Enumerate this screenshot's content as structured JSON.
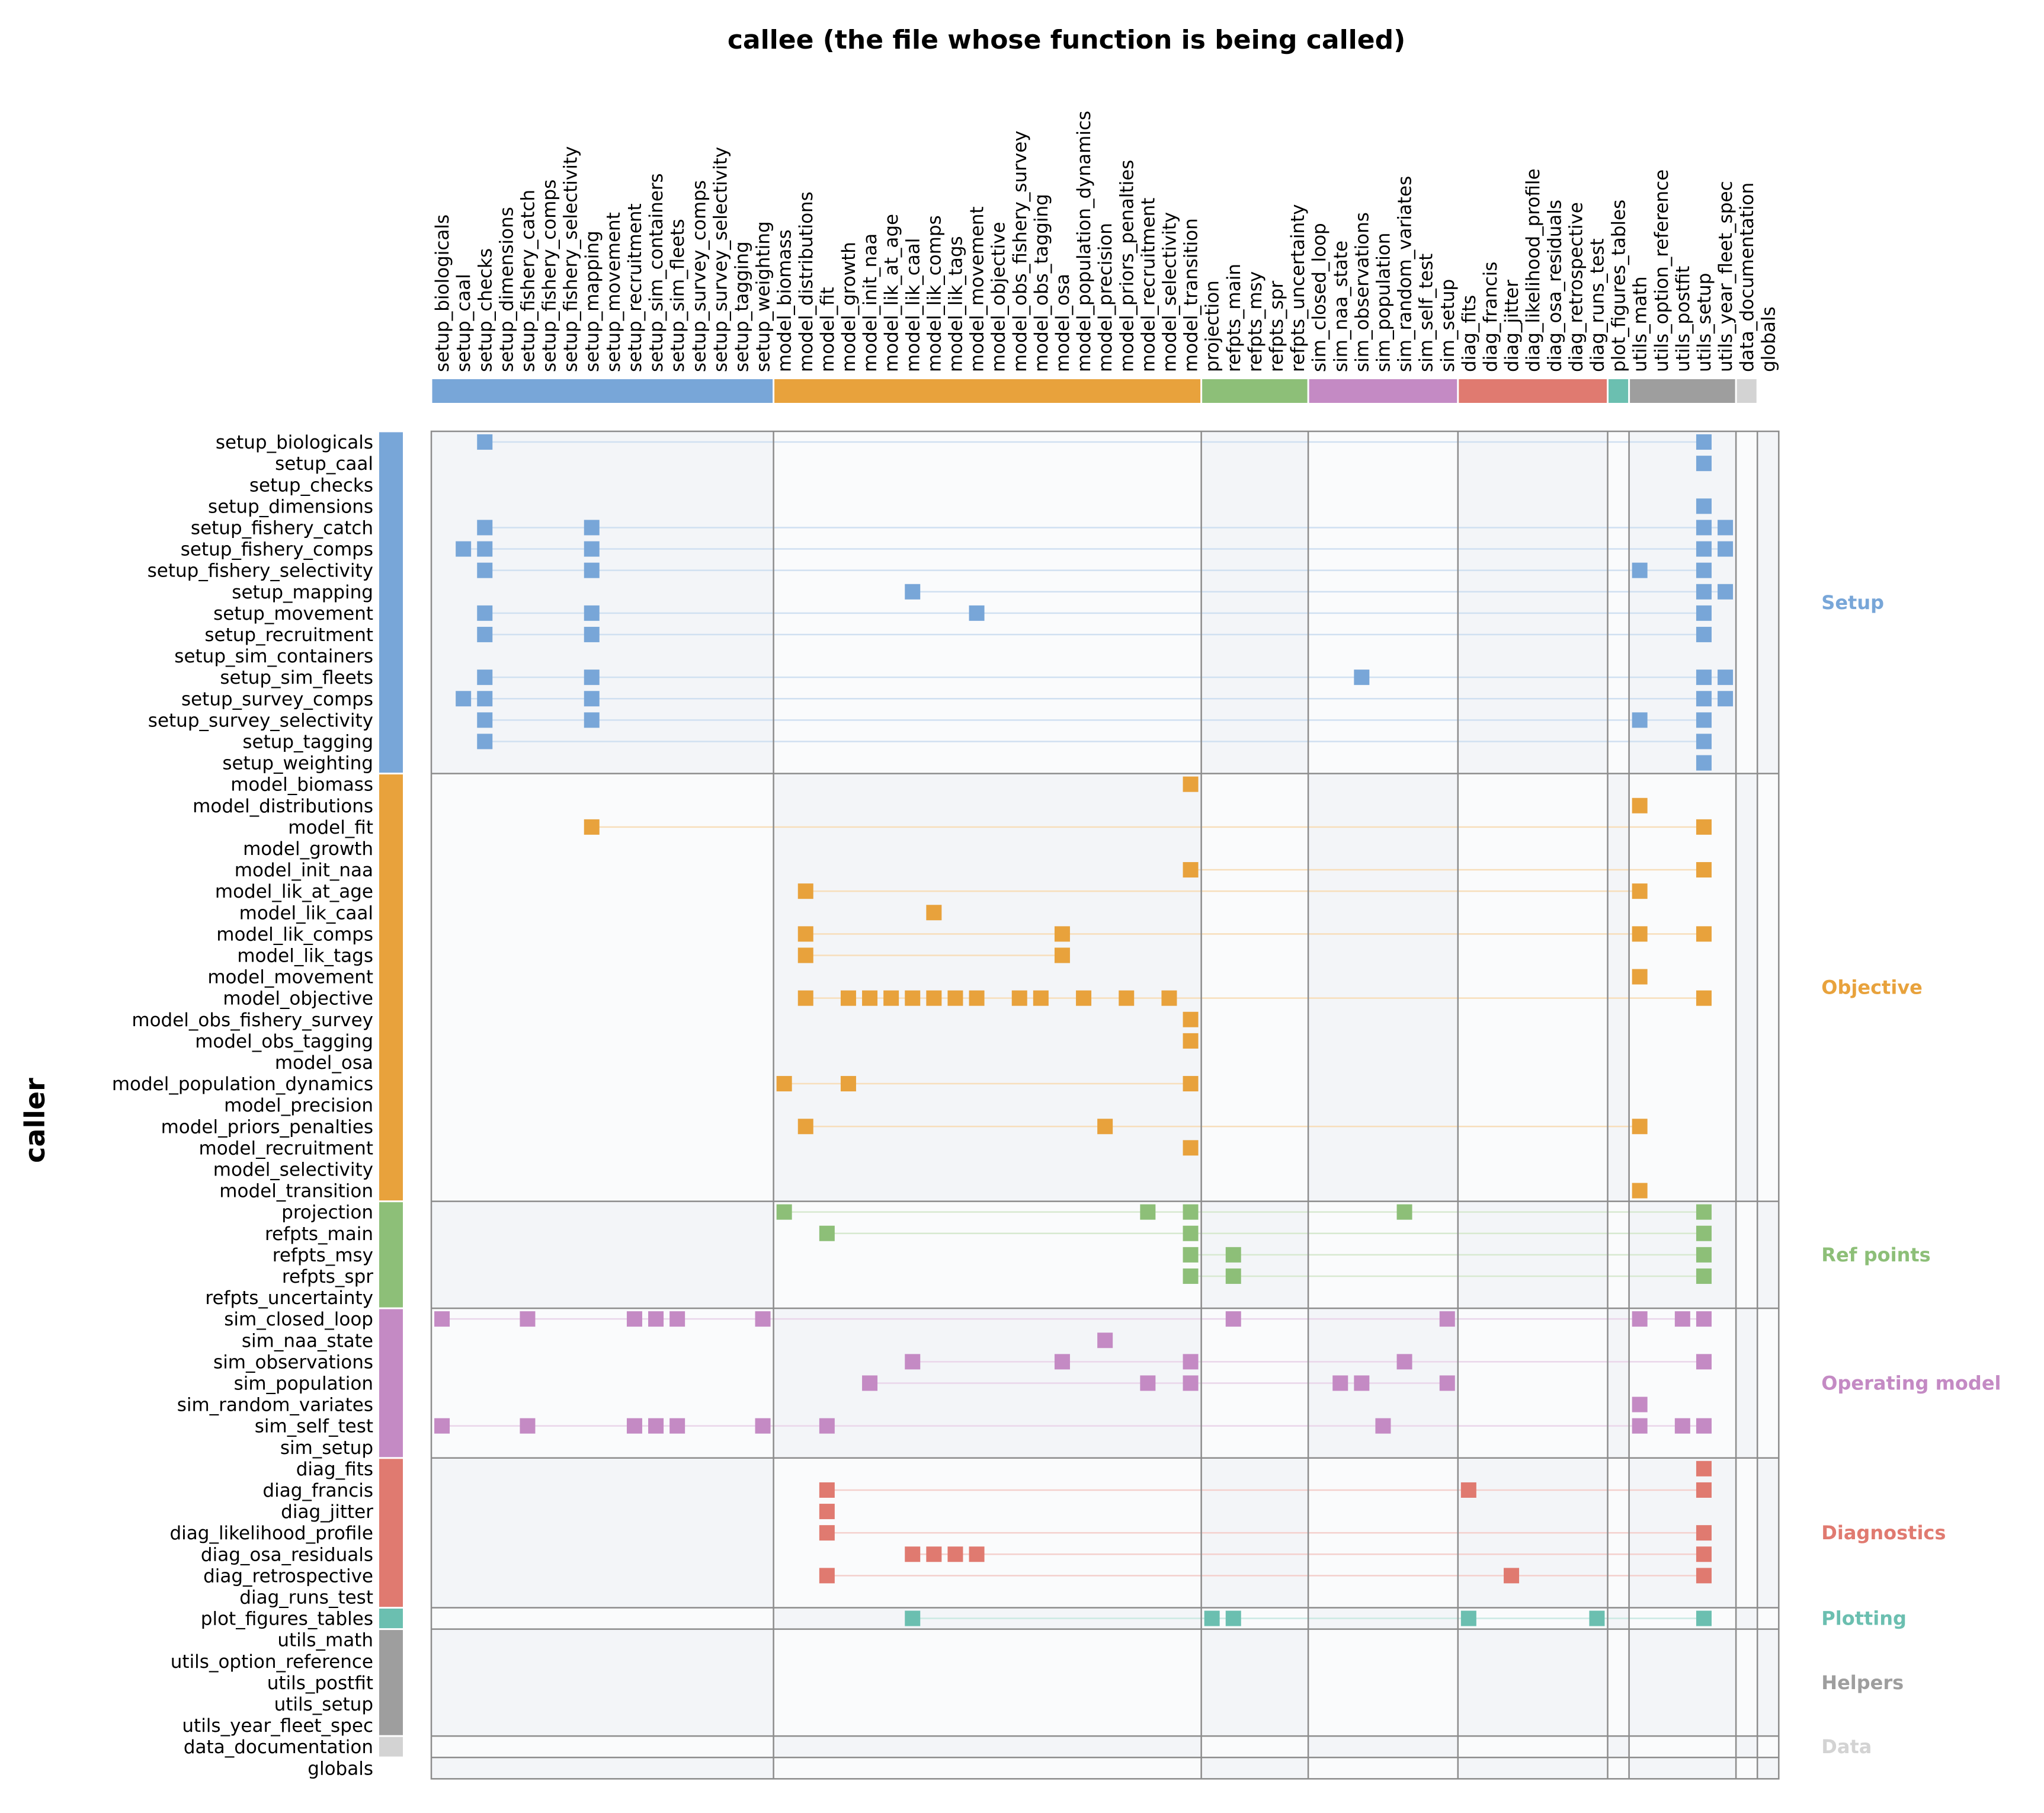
{
  "chart_data": {
    "type": "heatmap",
    "title": "callee  (the file whose function is being called)",
    "ylabel": "caller",
    "files": [
      "setup_biologicals",
      "setup_caal",
      "setup_checks",
      "setup_dimensions",
      "setup_fishery_catch",
      "setup_fishery_comps",
      "setup_fishery_selectivity",
      "setup_mapping",
      "setup_movement",
      "setup_recruitment",
      "setup_sim_containers",
      "setup_sim_fleets",
      "setup_survey_comps",
      "setup_survey_selectivity",
      "setup_tagging",
      "setup_weighting",
      "model_biomass",
      "model_distributions",
      "model_fit",
      "model_growth",
      "model_init_naa",
      "model_lik_at_age",
      "model_lik_caal",
      "model_lik_comps",
      "model_lik_tags",
      "model_movement",
      "model_objective",
      "model_obs_fishery_survey",
      "model_obs_tagging",
      "model_osa",
      "model_population_dynamics",
      "model_precision",
      "model_priors_penalties",
      "model_recruitment",
      "model_selectivity",
      "model_transition",
      "projection",
      "refpts_main",
      "refpts_msy",
      "refpts_spr",
      "refpts_uncertainty",
      "sim_closed_loop",
      "sim_naa_state",
      "sim_observations",
      "sim_population",
      "sim_random_variates",
      "sim_self_test",
      "sim_setup",
      "diag_fits",
      "diag_francis",
      "diag_jitter",
      "diag_likelihood_profile",
      "diag_osa_residuals",
      "diag_retrospective",
      "diag_runs_test",
      "plot_figures_tables",
      "utils_math",
      "utils_option_reference",
      "utils_postfit",
      "utils_setup",
      "utils_year_fleet_spec",
      "data_documentation",
      "globals"
    ],
    "groups": [
      {
        "name": "Setup",
        "start": 0,
        "count": 16,
        "color": "#78a6d8"
      },
      {
        "name": "Objective",
        "start": 16,
        "count": 20,
        "color": "#e8a23c"
      },
      {
        "name": "Ref points",
        "start": 36,
        "count": 5,
        "color": "#8dbf78"
      },
      {
        "name": "Operating model",
        "start": 41,
        "count": 7,
        "color": "#c48ac4"
      },
      {
        "name": "Diagnostics",
        "start": 48,
        "count": 7,
        "color": "#e07a70"
      },
      {
        "name": "Plotting",
        "start": 55,
        "count": 1,
        "color": "#6bbfb0"
      },
      {
        "name": "Helpers",
        "start": 56,
        "count": 5,
        "color": "#9e9e9e"
      },
      {
        "name": "Data",
        "start": 61,
        "count": 1,
        "color": "#d3d3d3"
      },
      {
        "name": "",
        "start": 62,
        "count": 1,
        "color": ""
      }
    ],
    "calls": [
      {
        "caller": "setup_biologicals",
        "callees": [
          "setup_checks",
          "utils_setup"
        ]
      },
      {
        "caller": "setup_caal",
        "callees": [
          "utils_setup"
        ]
      },
      {
        "caller": "setup_checks",
        "callees": []
      },
      {
        "caller": "setup_dimensions",
        "callees": [
          "utils_setup"
        ]
      },
      {
        "caller": "setup_fishery_catch",
        "callees": [
          "setup_checks",
          "setup_mapping",
          "utils_setup",
          "utils_year_fleet_spec"
        ]
      },
      {
        "caller": "setup_fishery_comps",
        "callees": [
          "setup_caal",
          "setup_checks",
          "setup_mapping",
          "utils_setup",
          "utils_year_fleet_spec"
        ]
      },
      {
        "caller": "setup_fishery_selectivity",
        "callees": [
          "setup_checks",
          "setup_mapping",
          "utils_math",
          "utils_setup"
        ]
      },
      {
        "caller": "setup_mapping",
        "callees": [
          "model_lik_caal",
          "utils_setup",
          "utils_year_fleet_spec"
        ]
      },
      {
        "caller": "setup_movement",
        "callees": [
          "setup_checks",
          "setup_mapping",
          "model_movement",
          "utils_setup"
        ]
      },
      {
        "caller": "setup_recruitment",
        "callees": [
          "setup_checks",
          "setup_mapping",
          "utils_setup"
        ]
      },
      {
        "caller": "setup_sim_containers",
        "callees": []
      },
      {
        "caller": "setup_sim_fleets",
        "callees": [
          "setup_checks",
          "setup_mapping",
          "sim_observations",
          "utils_setup",
          "utils_year_fleet_spec"
        ]
      },
      {
        "caller": "setup_survey_comps",
        "callees": [
          "setup_caal",
          "setup_checks",
          "setup_mapping",
          "utils_setup",
          "utils_year_fleet_spec"
        ]
      },
      {
        "caller": "setup_survey_selectivity",
        "callees": [
          "setup_checks",
          "setup_mapping",
          "utils_math",
          "utils_setup"
        ]
      },
      {
        "caller": "setup_tagging",
        "callees": [
          "setup_checks",
          "utils_setup"
        ]
      },
      {
        "caller": "setup_weighting",
        "callees": [
          "utils_setup"
        ]
      },
      {
        "caller": "model_biomass",
        "callees": [
          "model_transition"
        ]
      },
      {
        "caller": "model_distributions",
        "callees": [
          "utils_math"
        ]
      },
      {
        "caller": "model_fit",
        "callees": [
          "setup_mapping",
          "utils_setup"
        ]
      },
      {
        "caller": "model_growth",
        "callees": []
      },
      {
        "caller": "model_init_naa",
        "callees": [
          "model_transition",
          "utils_setup"
        ]
      },
      {
        "caller": "model_lik_at_age",
        "callees": [
          "model_distributions",
          "utils_math"
        ]
      },
      {
        "caller": "model_lik_caal",
        "callees": [
          "model_lik_comps"
        ]
      },
      {
        "caller": "model_lik_comps",
        "callees": [
          "model_distributions",
          "model_osa",
          "utils_math",
          "utils_setup"
        ]
      },
      {
        "caller": "model_lik_tags",
        "callees": [
          "model_distributions",
          "model_osa"
        ]
      },
      {
        "caller": "model_movement",
        "callees": [
          "utils_math"
        ]
      },
      {
        "caller": "model_objective",
        "callees": [
          "model_distributions",
          "model_growth",
          "model_init_naa",
          "model_lik_at_age",
          "model_lik_caal",
          "model_lik_comps",
          "model_lik_tags",
          "model_movement",
          "model_obs_fishery_survey",
          "model_obs_tagging",
          "model_population_dynamics",
          "model_priors_penalties",
          "model_selectivity",
          "utils_setup"
        ]
      },
      {
        "caller": "model_obs_fishery_survey",
        "callees": [
          "model_transition"
        ]
      },
      {
        "caller": "model_obs_tagging",
        "callees": [
          "model_transition"
        ]
      },
      {
        "caller": "model_osa",
        "callees": []
      },
      {
        "caller": "model_population_dynamics",
        "callees": [
          "model_biomass",
          "model_growth",
          "model_transition"
        ]
      },
      {
        "caller": "model_precision",
        "callees": []
      },
      {
        "caller": "model_priors_penalties",
        "callees": [
          "model_distributions",
          "model_precision",
          "utils_math"
        ]
      },
      {
        "caller": "model_recruitment",
        "callees": [
          "model_transition"
        ]
      },
      {
        "caller": "model_selectivity",
        "callees": []
      },
      {
        "caller": "model_transition",
        "callees": [
          "utils_math"
        ]
      },
      {
        "caller": "projection",
        "callees": [
          "model_biomass",
          "model_recruitment",
          "model_transition",
          "sim_random_variates",
          "utils_setup"
        ]
      },
      {
        "caller": "refpts_main",
        "callees": [
          "model_fit",
          "model_transition",
          "utils_setup"
        ]
      },
      {
        "caller": "refpts_msy",
        "callees": [
          "model_transition",
          "refpts_main",
          "utils_setup"
        ]
      },
      {
        "caller": "refpts_spr",
        "callees": [
          "model_transition",
          "refpts_main",
          "utils_setup"
        ]
      },
      {
        "caller": "refpts_uncertainty",
        "callees": []
      },
      {
        "caller": "sim_closed_loop",
        "callees": [
          "setup_biologicals",
          "setup_fishery_catch",
          "setup_recruitment",
          "setup_sim_containers",
          "setup_sim_fleets",
          "setup_weighting",
          "refpts_main",
          "sim_setup",
          "utils_math",
          "utils_postfit",
          "utils_setup"
        ]
      },
      {
        "caller": "sim_naa_state",
        "callees": [
          "model_precision"
        ]
      },
      {
        "caller": "sim_observations",
        "callees": [
          "model_lik_caal",
          "model_osa",
          "model_transition",
          "sim_random_variates",
          "utils_setup"
        ]
      },
      {
        "caller": "sim_population",
        "callees": [
          "model_init_naa",
          "model_recruitment",
          "model_transition",
          "sim_naa_state",
          "sim_observations",
          "sim_setup"
        ]
      },
      {
        "caller": "sim_random_variates",
        "callees": [
          "utils_math"
        ]
      },
      {
        "caller": "sim_self_test",
        "callees": [
          "setup_biologicals",
          "setup_fishery_catch",
          "setup_recruitment",
          "setup_sim_containers",
          "setup_sim_fleets",
          "setup_weighting",
          "model_fit",
          "sim_population",
          "utils_math",
          "utils_postfit",
          "utils_setup"
        ]
      },
      {
        "caller": "sim_setup",
        "callees": []
      },
      {
        "caller": "diag_fits",
        "callees": [
          "utils_setup"
        ]
      },
      {
        "caller": "diag_francis",
        "callees": [
          "model_fit",
          "diag_fits",
          "utils_setup"
        ]
      },
      {
        "caller": "diag_jitter",
        "callees": [
          "model_fit"
        ]
      },
      {
        "caller": "diag_likelihood_profile",
        "callees": [
          "model_fit",
          "utils_setup"
        ]
      },
      {
        "caller": "diag_osa_residuals",
        "callees": [
          "model_lik_caal",
          "model_lik_comps",
          "model_lik_tags",
          "model_movement",
          "utils_setup"
        ]
      },
      {
        "caller": "diag_retrospective",
        "callees": [
          "model_fit",
          "diag_jitter",
          "utils_setup"
        ]
      },
      {
        "caller": "diag_runs_test",
        "callees": []
      },
      {
        "caller": "plot_figures_tables",
        "callees": [
          "model_lik_caal",
          "projection",
          "refpts_main",
          "diag_fits",
          "diag_runs_test",
          "utils_setup"
        ]
      },
      {
        "caller": "utils_math",
        "callees": []
      },
      {
        "caller": "utils_option_reference",
        "callees": []
      },
      {
        "caller": "utils_postfit",
        "callees": []
      },
      {
        "caller": "utils_setup",
        "callees": []
      },
      {
        "caller": "utils_year_fleet_spec",
        "callees": []
      },
      {
        "caller": "data_documentation",
        "callees": []
      },
      {
        "caller": "globals",
        "callees": []
      }
    ]
  }
}
